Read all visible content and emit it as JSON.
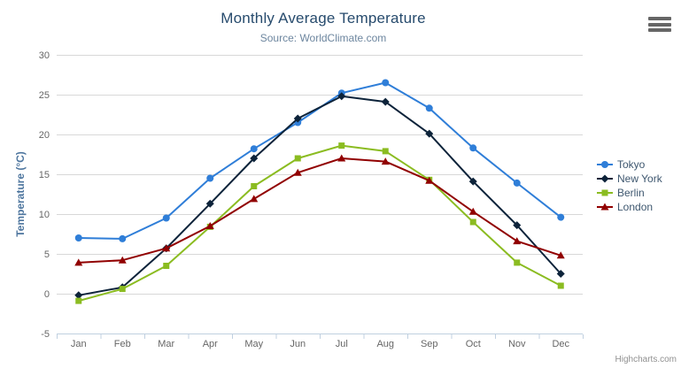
{
  "chart_data": {
    "type": "line",
    "title": "Monthly Average Temperature",
    "subtitle": "Source: WorldClimate.com",
    "ylabel": "Temperature (°C)",
    "xlabel": "",
    "ylim": [
      -5,
      30
    ],
    "ytick_step": 5,
    "grid": true,
    "legend_position": "right",
    "categories": [
      "Jan",
      "Feb",
      "Mar",
      "Apr",
      "May",
      "Jun",
      "Jul",
      "Aug",
      "Sep",
      "Oct",
      "Nov",
      "Dec"
    ],
    "series": [
      {
        "name": "Tokyo",
        "color": "#2f7ed8",
        "marker": "circle",
        "values": [
          7.0,
          6.9,
          9.5,
          14.5,
          18.2,
          21.5,
          25.2,
          26.5,
          23.3,
          18.3,
          13.9,
          9.6
        ]
      },
      {
        "name": "New York",
        "color": "#0d233a",
        "marker": "diamond",
        "values": [
          -0.2,
          0.8,
          5.7,
          11.3,
          17.0,
          22.0,
          24.8,
          24.1,
          20.1,
          14.1,
          8.6,
          2.5
        ]
      },
      {
        "name": "Berlin",
        "color": "#8bbc21",
        "marker": "square",
        "values": [
          -0.9,
          0.6,
          3.5,
          8.4,
          13.5,
          17.0,
          18.6,
          17.9,
          14.3,
          9.0,
          3.9,
          1.0
        ]
      },
      {
        "name": "London",
        "color": "#910000",
        "marker": "triangle",
        "values": [
          3.9,
          4.2,
          5.7,
          8.5,
          11.9,
          15.2,
          17.0,
          16.6,
          14.2,
          10.3,
          6.6,
          4.8
        ]
      }
    ]
  },
  "ui": {
    "credits_label": "Highcharts.com",
    "colors": {
      "title": "#274b6d",
      "subtitle": "#6d869f",
      "axis_labels": "#666666",
      "grid_line": "#d8d8d8",
      "axis_line": "#c0d0e0",
      "y_axis_title": "#4d759e",
      "legend_text": "#3e576f",
      "credits": "#909090",
      "menu_icon": "#666666"
    }
  }
}
